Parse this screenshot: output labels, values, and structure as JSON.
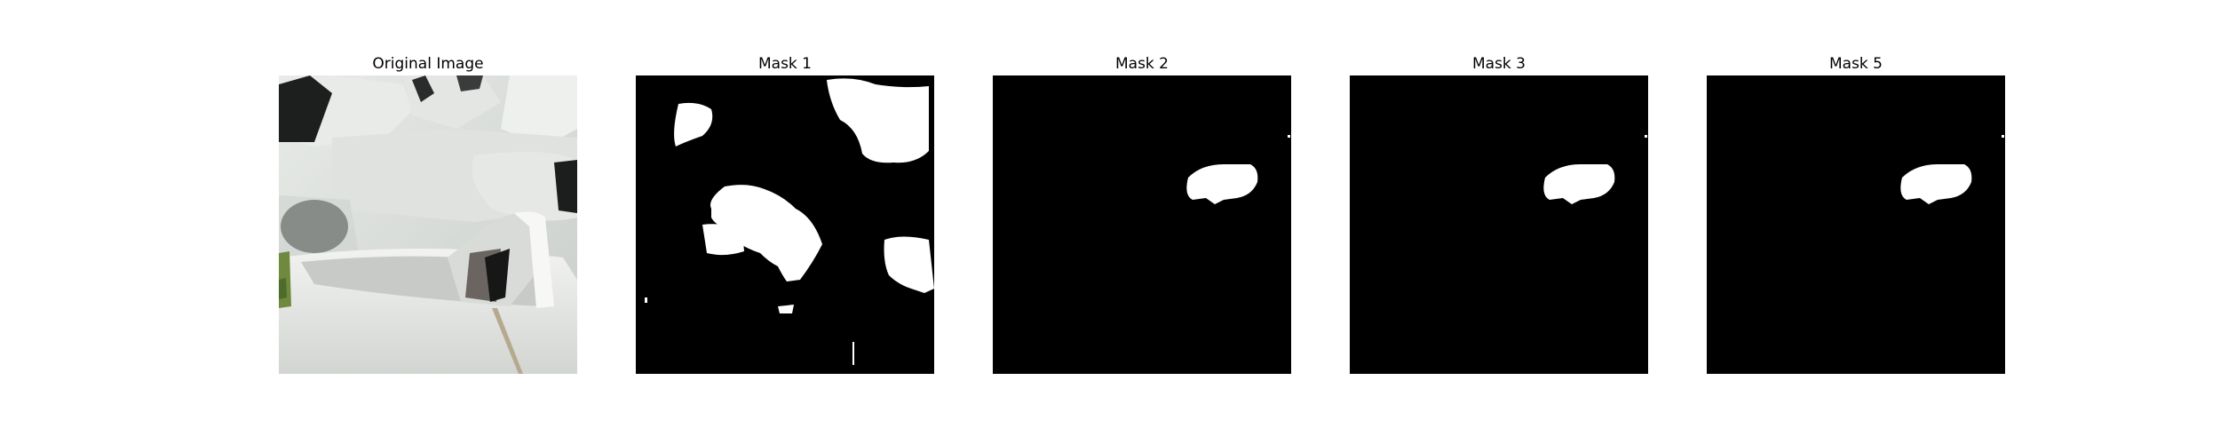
{
  "panels": [
    {
      "title": "Original Image",
      "kind": "photo"
    },
    {
      "title": "Mask 1",
      "kind": "mask"
    },
    {
      "title": "Mask 2",
      "kind": "mask"
    },
    {
      "title": "Mask 3",
      "kind": "mask"
    },
    {
      "title": "Mask 5",
      "kind": "mask"
    }
  ],
  "colors": {
    "background": "#ffffff",
    "mask_background": "#000000",
    "mask_foreground": "#ffffff"
  }
}
